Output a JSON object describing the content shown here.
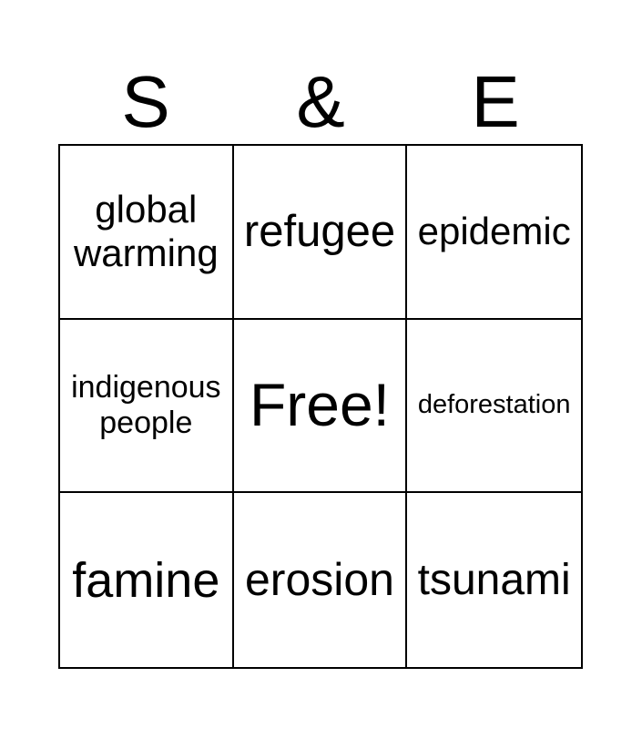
{
  "title": {
    "letters": [
      "S",
      "&",
      "E"
    ]
  },
  "grid": {
    "rows": 3,
    "cols": 3,
    "free_cell_index": 4,
    "cells": [
      {
        "label": "global warming"
      },
      {
        "label": "refugee"
      },
      {
        "label": "epidemic"
      },
      {
        "label": "indigenous people"
      },
      {
        "label": "Free!"
      },
      {
        "label": "deforestation"
      },
      {
        "label": "famine"
      },
      {
        "label": "erosion"
      },
      {
        "label": "tsunami"
      }
    ]
  },
  "colors": {
    "background": "#ffffff",
    "text": "#000000",
    "grid_line": "#000000"
  }
}
